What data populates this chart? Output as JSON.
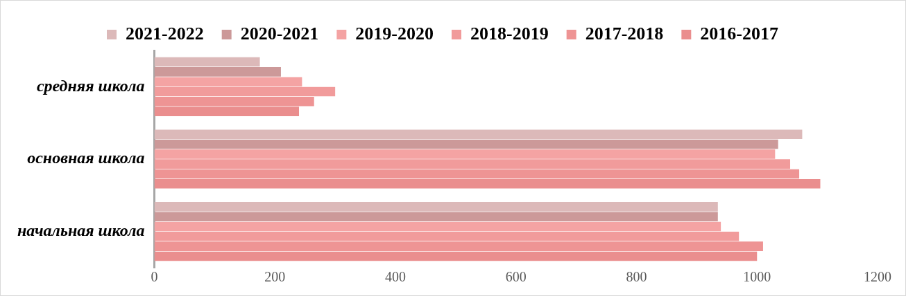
{
  "chart_data": {
    "type": "bar",
    "orientation": "horizontal",
    "categories": [
      "средняя школа",
      "основная школа",
      "начальная школа"
    ],
    "series": [
      {
        "name": "2021-2022",
        "color": "#dcb9b9",
        "values": [
          175,
          1075,
          935
        ]
      },
      {
        "name": "2020-2021",
        "color": "#cc9999",
        "values": [
          210,
          1035,
          935
        ]
      },
      {
        "name": "2019-2020",
        "color": "#f4a3a3",
        "values": [
          245,
          1030,
          940
        ]
      },
      {
        "name": "2018-2019",
        "color": "#f19b9b",
        "values": [
          300,
          1055,
          970
        ]
      },
      {
        "name": "2017-2018",
        "color": "#ee9494",
        "values": [
          265,
          1070,
          1010
        ]
      },
      {
        "name": "2016-2017",
        "color": "#ea8e8e",
        "values": [
          240,
          1105,
          1000
        ]
      }
    ],
    "xlim": [
      0,
      1200
    ],
    "xticks": [
      0,
      200,
      400,
      600,
      800,
      1000,
      1200
    ],
    "grid": false,
    "legend": "top"
  }
}
